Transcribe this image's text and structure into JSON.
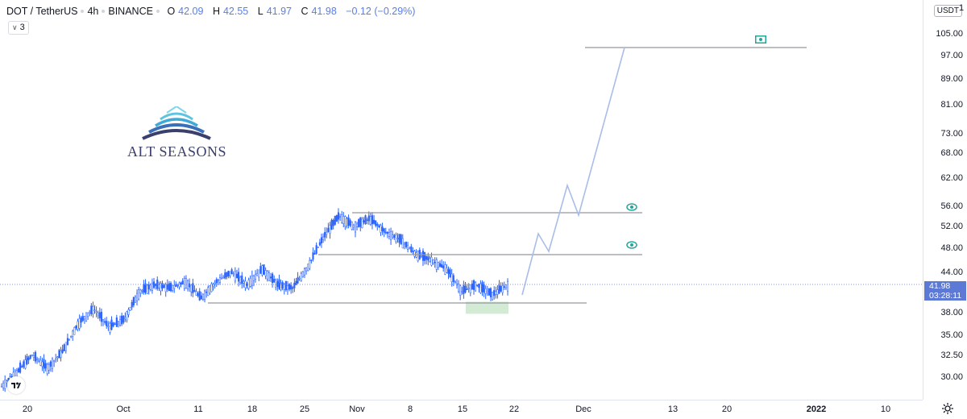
{
  "legend": {
    "symbol": "DOT / TetherUS",
    "interval": "4h",
    "exchange": "BINANCE",
    "open_label": "O",
    "open": "42.09",
    "high_label": "H",
    "high": "42.55",
    "low_label": "L",
    "low": "41.97",
    "close_label": "C",
    "close": "41.98",
    "change": "−0.12 (−0.29%)"
  },
  "indicator_toggle": "3",
  "brand": {
    "name": "ALT SEASONS"
  },
  "currency_button": "USDT",
  "price_tag": {
    "price": "41.98",
    "countdown": "03:28:11"
  },
  "top_right_cut": "1",
  "y_axis": {
    "scale": "log",
    "labels": [
      "105.00",
      "97.00",
      "89.00",
      "81.00",
      "73.00",
      "68.00",
      "62.00",
      "56.00",
      "52.00",
      "48.00",
      "44.00",
      "38.00",
      "35.00",
      "32.50",
      "30.00"
    ]
  },
  "x_axis": {
    "labels": [
      "20",
      "Oct",
      "11",
      "18",
      "25",
      "Nov",
      "8",
      "15",
      "22",
      "Dec",
      "13",
      "20",
      "2022",
      "10"
    ]
  },
  "colors": {
    "candle": "#2962ff",
    "projection": "#a8bde8",
    "levels": "#9598a1",
    "support_box": "#c8e6c9",
    "alert": "#26a69a",
    "price_tag": "#5d79d6"
  },
  "icons": [
    "eye-alert-icon",
    "eye-alert-icon",
    "money-target-icon",
    "gear-icon",
    "tradingview-logo-icon",
    "chevron-down-icon"
  ],
  "chart_data": {
    "type": "line",
    "series": [
      {
        "values": [
          29.0,
          30.5,
          32.5,
          31.0,
          33.0,
          36.5,
          38.5,
          36.0,
          37.0,
          41.0,
          42.0,
          41.5,
          42.5,
          40.0,
          42.5,
          44.0,
          42.0,
          44.5,
          42.0,
          41.5,
          45.0,
          50.0,
          54.0,
          52.0,
          53.5,
          51.0,
          49.5,
          47.0,
          46.0,
          44.5,
          41.0,
          42.0,
          40.5,
          42.0
        ]
      }
    ],
    "projection": [
      41.98,
      52.0,
      48.0,
      60.0,
      55.5,
      100.0
    ],
    "levels": [
      100.0,
      55.5,
      48.0,
      39.5
    ],
    "support_zone": [
      37.8,
      39.5
    ],
    "ylim": [
      28.5,
      110.0
    ],
    "yscale": "log"
  }
}
